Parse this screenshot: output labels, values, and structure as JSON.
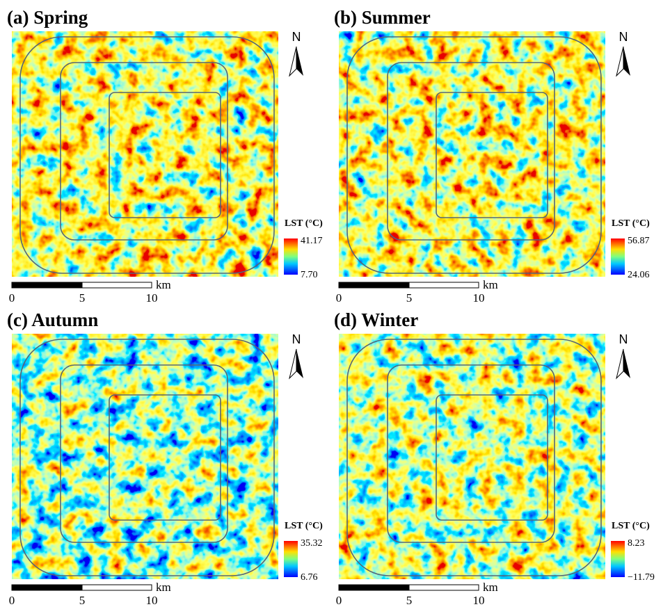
{
  "north": "N",
  "legend_title": "LST (°C)",
  "scale_bar": {
    "labels": [
      "0",
      "5",
      "10"
    ],
    "unit": "km"
  },
  "panels": [
    {
      "title": "(a) Spring",
      "legend_max": "41.17",
      "legend_min": "7.70"
    },
    {
      "title": "(b) Summer",
      "legend_max": "56.87",
      "legend_min": "24.06"
    },
    {
      "title": "(c) Autumn",
      "legend_max": "35.32",
      "legend_min": "6.76"
    },
    {
      "title": "(d) Winter",
      "legend_max": "8.23",
      "legend_min": "−11.79"
    }
  ]
}
